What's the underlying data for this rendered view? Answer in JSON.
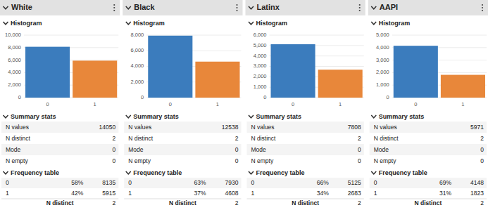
{
  "chart_data": [
    {
      "type": "bar",
      "title": "White",
      "subtitle": "Histogram",
      "categories": [
        "0",
        "1"
      ],
      "values": [
        8135,
        5915
      ],
      "colors": [
        "#3b7cbd",
        "#e8873a"
      ],
      "ylim": [
        0,
        10000
      ],
      "yticks": [
        0,
        {
          "value": 2000,
          "label": "2,000"
        },
        {
          "value": 4000,
          "label": "4,000"
        },
        {
          "value": 6000,
          "label": "6,000"
        },
        {
          "value": 8000,
          "label": "8,000"
        },
        {
          "value": 10000,
          "label": "10,000"
        }
      ],
      "grid": true
    },
    {
      "type": "bar",
      "title": "Black",
      "subtitle": "Histogram",
      "categories": [
        "0",
        "1"
      ],
      "values": [
        7930,
        4608
      ],
      "colors": [
        "#3b7cbd",
        "#e8873a"
      ],
      "ylim": [
        0,
        8000
      ],
      "yticks": [
        0,
        {
          "value": 2000,
          "label": "2,000"
        },
        {
          "value": 4000,
          "label": "4,000"
        },
        {
          "value": 6000,
          "label": "6,000"
        },
        {
          "value": 8000,
          "label": "8,000"
        }
      ],
      "grid": true
    },
    {
      "type": "bar",
      "title": "Latinx",
      "subtitle": "Histogram",
      "categories": [
        "0",
        "1"
      ],
      "values": [
        5125,
        2683
      ],
      "colors": [
        "#3b7cbd",
        "#e8873a"
      ],
      "ylim": [
        0,
        6000
      ],
      "yticks": [
        0,
        {
          "value": 1000,
          "label": "1,000"
        },
        {
          "value": 2000,
          "label": "2,000"
        },
        {
          "value": 3000,
          "label": "3,000"
        },
        {
          "value": 4000,
          "label": "4,000"
        },
        {
          "value": 5000,
          "label": "5,000"
        },
        {
          "value": 6000,
          "label": "6,000"
        }
      ],
      "grid": true
    },
    {
      "type": "bar",
      "title": "AAPI",
      "subtitle": "Histogram",
      "categories": [
        "0",
        "1"
      ],
      "values": [
        4148,
        1823
      ],
      "colors": [
        "#3b7cbd",
        "#e8873a"
      ],
      "ylim": [
        0,
        5000
      ],
      "yticks": [
        0,
        {
          "value": 1000,
          "label": "1,000"
        },
        {
          "value": 2000,
          "label": "2,000"
        },
        {
          "value": 3000,
          "label": "3,000"
        },
        {
          "value": 4000,
          "label": "4,000"
        },
        {
          "value": 5000,
          "label": "5,000"
        }
      ],
      "grid": true
    }
  ],
  "sections": {
    "summary": "Summary stats",
    "frequency": "Frequency table"
  },
  "tables": [
    {
      "summary_stats": [
        [
          "N values",
          "14050"
        ],
        [
          "N distinct",
          "2"
        ],
        [
          "Mode",
          "0"
        ],
        [
          "N empty",
          "0"
        ]
      ],
      "frequency_table": [
        [
          "0",
          "58%",
          "8135"
        ],
        [
          "1",
          "42%",
          "5915"
        ]
      ],
      "footer": [
        "N distinct",
        "2"
      ]
    },
    {
      "summary_stats": [
        [
          "N values",
          "12538"
        ],
        [
          "N distinct",
          "2"
        ],
        [
          "Mode",
          "0"
        ],
        [
          "N empty",
          "0"
        ]
      ],
      "frequency_table": [
        [
          "0",
          "63%",
          "7930"
        ],
        [
          "1",
          "37%",
          "4608"
        ]
      ],
      "footer": [
        "N distinct",
        "2"
      ]
    },
    {
      "summary_stats": [
        [
          "N values",
          "7808"
        ],
        [
          "N distinct",
          "2"
        ],
        [
          "Mode",
          "0"
        ],
        [
          "N empty",
          "0"
        ]
      ],
      "frequency_table": [
        [
          "0",
          "66%",
          "5125"
        ],
        [
          "1",
          "34%",
          "2683"
        ]
      ],
      "footer": [
        "N distinct",
        "2"
      ]
    },
    {
      "summary_stats": [
        [
          "N values",
          "5971"
        ],
        [
          "N distinct",
          "2"
        ],
        [
          "Mode",
          "0"
        ],
        [
          "N empty",
          "0"
        ]
      ],
      "frequency_table": [
        [
          "0",
          "69%",
          "4148"
        ],
        [
          "1",
          "31%",
          "1823"
        ]
      ],
      "footer": [
        "N distinct",
        "2"
      ]
    }
  ]
}
